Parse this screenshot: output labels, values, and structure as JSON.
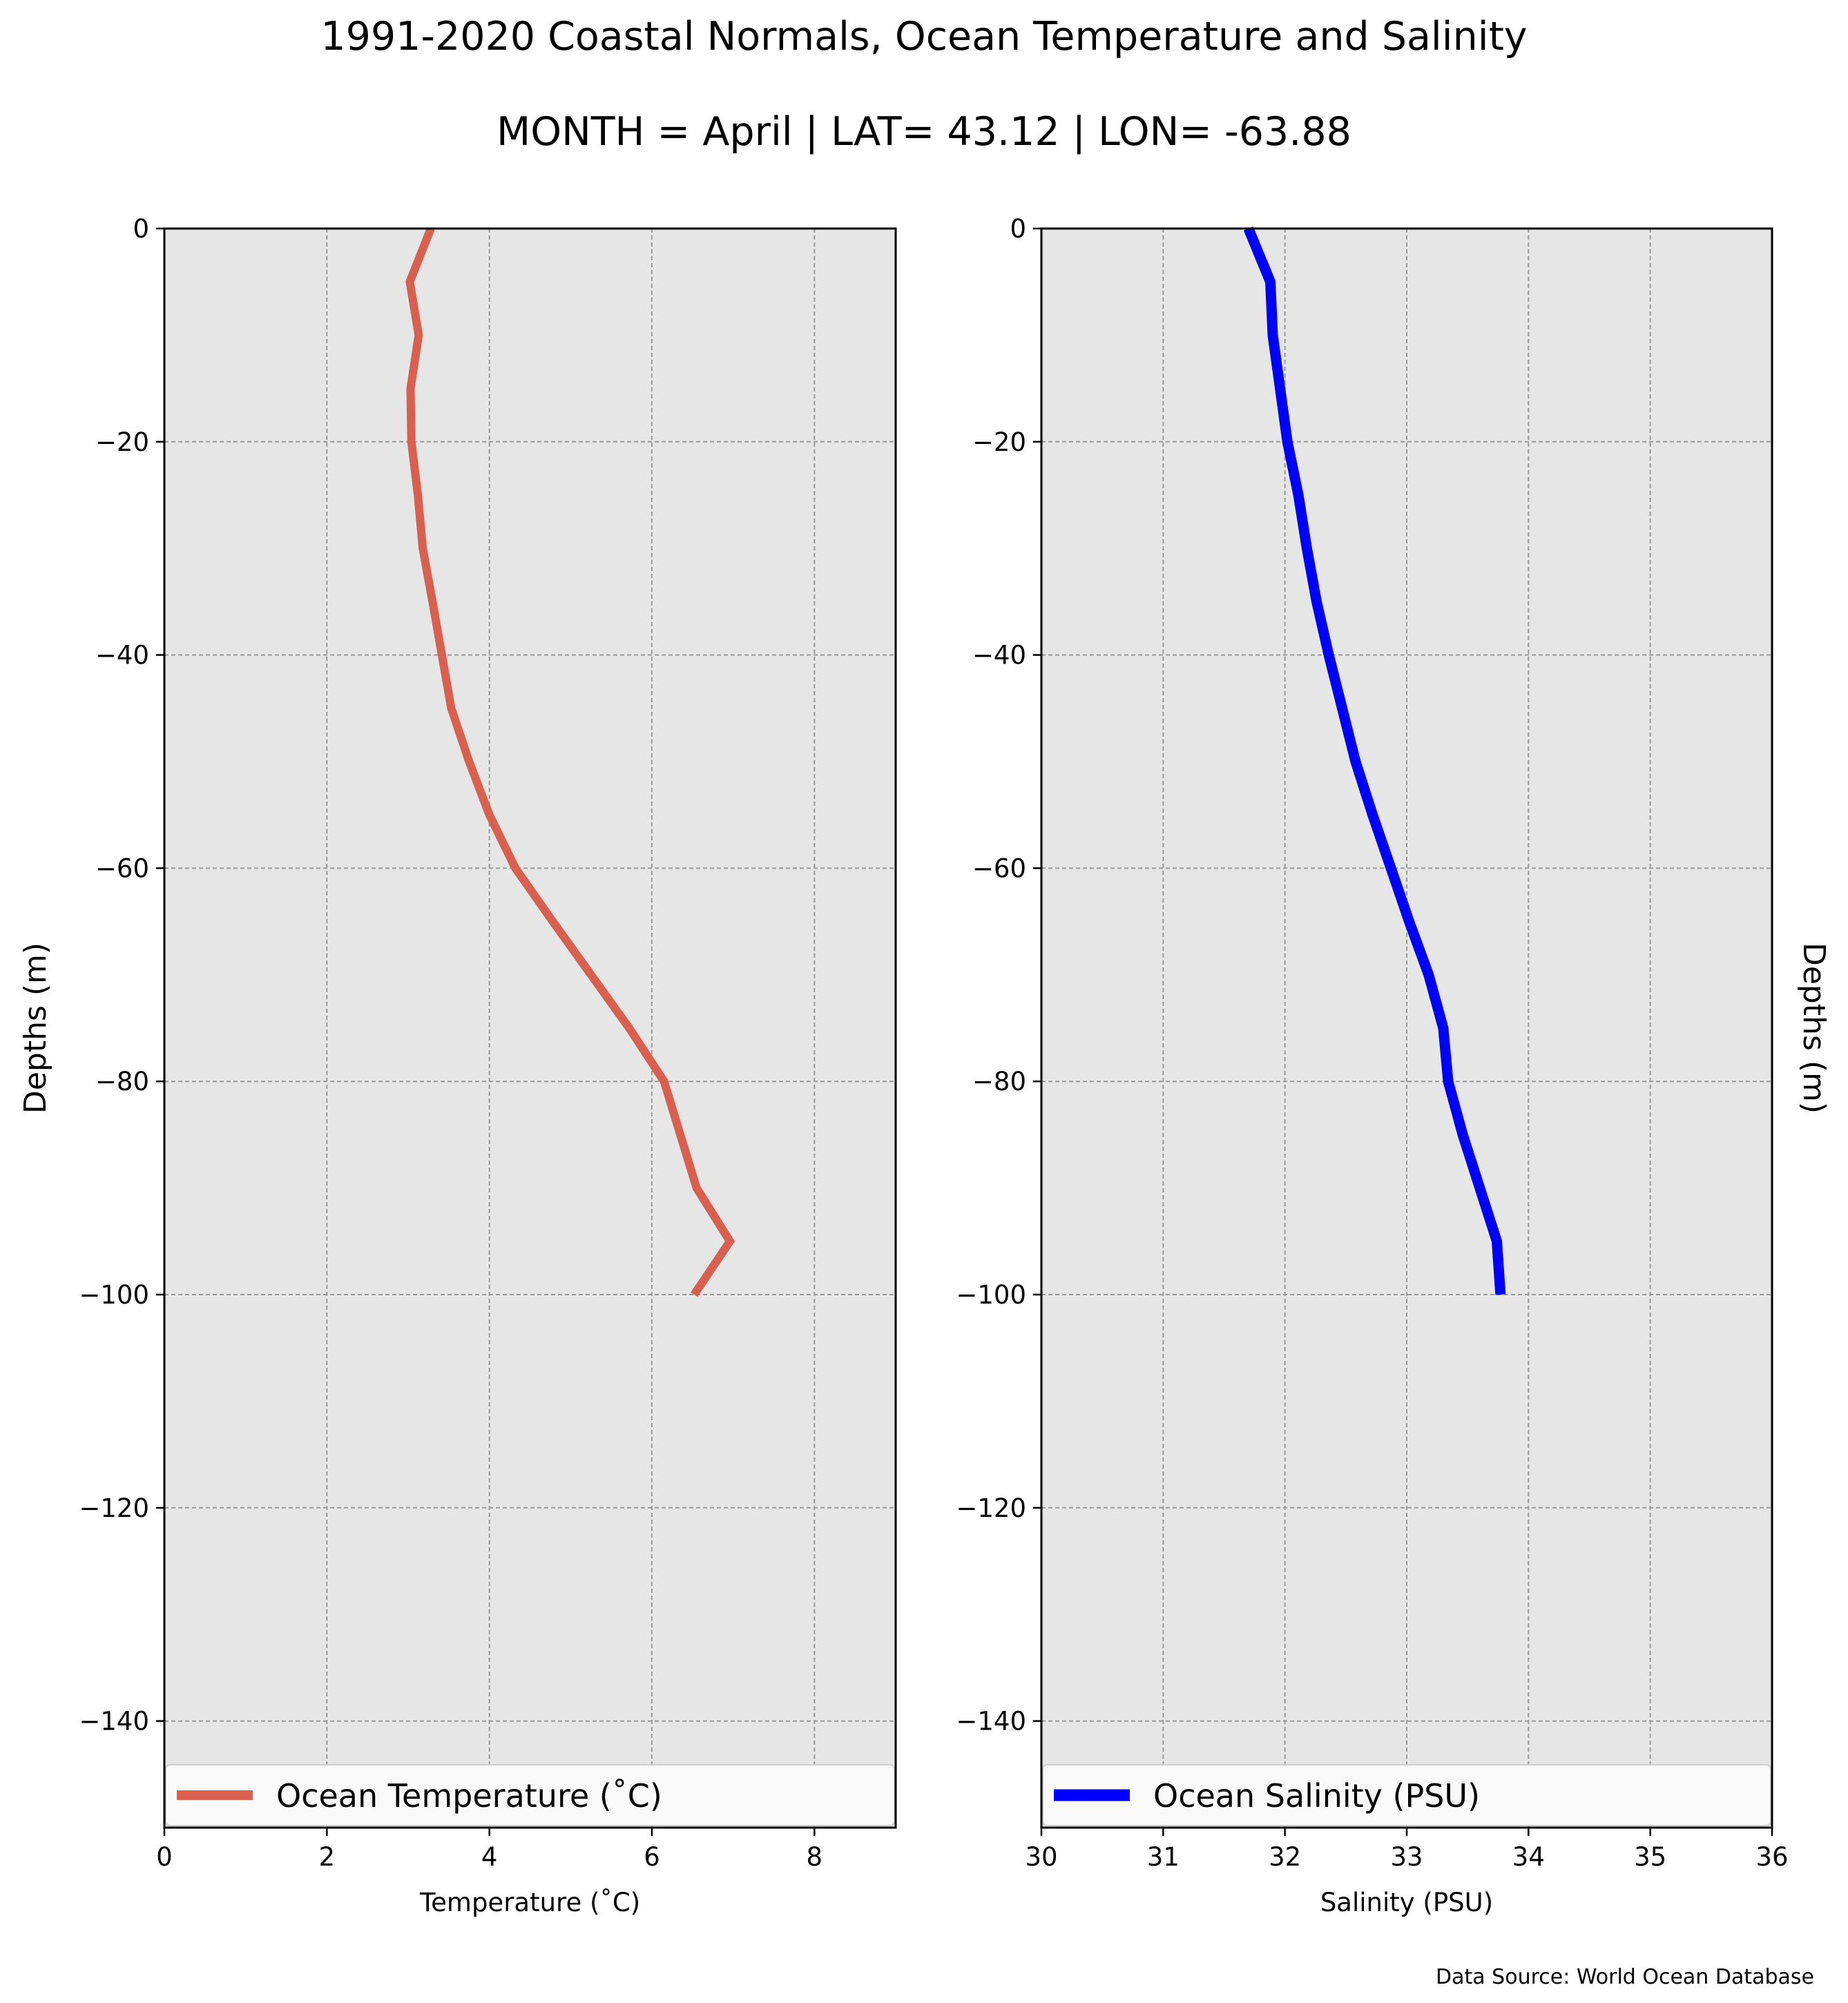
{
  "title": "1991-2020 Coastal Normals, Ocean Temperature and Salinity",
  "subtitle": "MONTH = April | LAT= 43.12 | LON= -63.88",
  "source_note": "Data Source: World Ocean Database",
  "colors": {
    "background": "#ffffff",
    "axes_face": "#e6e6e6",
    "grid": "#9a9a9a",
    "temperature_line": "#d9604f",
    "salinity_line": "#0000ff",
    "legend_face": "#f9f9f9"
  },
  "chart_data": [
    {
      "type": "line",
      "title": "",
      "xlabel": "Temperature ($^\\circ$C)",
      "xlabel_display": "Temperature (˚C)",
      "ylabel": "Depths (m)",
      "ylabel_side": "left",
      "xlim": [
        0,
        9
      ],
      "ylim": [
        -150,
        0
      ],
      "xticks": [
        0,
        2,
        4,
        6,
        8
      ],
      "xtick_labels": [
        "0",
        "2",
        "4",
        "6",
        "8"
      ],
      "yticks": [
        0,
        -20,
        -40,
        -60,
        -80,
        -100,
        -120,
        -140
      ],
      "ytick_labels": [
        "0",
        "−20",
        "−40",
        "−60",
        "−80",
        "−100",
        "−120",
        "−140"
      ],
      "grid": true,
      "legend": "lower center",
      "series": [
        {
          "name": "Ocean Temperature (˚C)",
          "x": [
            3.28,
            3.02,
            3.13,
            3.03,
            3.04,
            3.12,
            3.18,
            3.3,
            3.53,
            3.75,
            4.0,
            4.32,
            4.78,
            5.25,
            5.72,
            6.15,
            6.55,
            6.96,
            6.52
          ],
          "y": [
            0,
            -5,
            -10,
            -15,
            -20,
            -25,
            -30,
            -35,
            -45,
            -50,
            -55,
            -60,
            -65,
            -70,
            -75,
            -80,
            -90,
            -95,
            -100
          ]
        }
      ]
    },
    {
      "type": "line",
      "title": "",
      "xlabel": "Salinity (PSU)",
      "ylabel": "Depths (m)",
      "ylabel_side": "right",
      "xlim": [
        30,
        36
      ],
      "ylim": [
        -150,
        0
      ],
      "xticks": [
        30,
        31,
        32,
        33,
        34,
        35,
        36
      ],
      "xtick_labels": [
        "30",
        "31",
        "32",
        "33",
        "34",
        "35",
        "36"
      ],
      "yticks": [
        0,
        -20,
        -40,
        -60,
        -80,
        -100,
        -120,
        -140
      ],
      "ytick_labels": [
        "0",
        "−20",
        "−40",
        "−60",
        "−80",
        "−100",
        "−120",
        "−140"
      ],
      "grid": true,
      "legend": "lower center",
      "series": [
        {
          "name": "Ocean Salinity (PSU)",
          "x": [
            31.7,
            31.88,
            31.9,
            31.96,
            32.02,
            32.11,
            32.18,
            32.26,
            32.36,
            32.47,
            32.58,
            32.72,
            32.87,
            33.02,
            33.18,
            33.3,
            33.34,
            33.46,
            33.6,
            33.74,
            33.77
          ],
          "y": [
            0,
            -5,
            -10,
            -15,
            -20,
            -25,
            -30,
            -35,
            -40,
            -45,
            -50,
            -55,
            -60,
            -65,
            -70,
            -75,
            -80,
            -85,
            -90,
            -95,
            -100
          ]
        }
      ]
    }
  ]
}
